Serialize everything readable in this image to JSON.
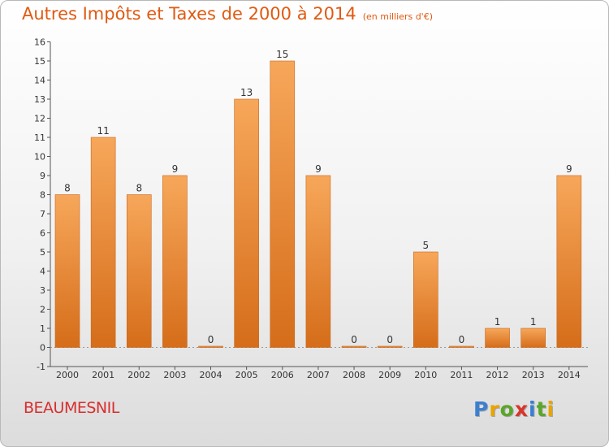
{
  "title": "Autres Impôts et Taxes de 2000 à 2014",
  "unit_note": "(en milliers d'€)",
  "commune": "BEAUMESNIL",
  "logo": {
    "letters": [
      "P",
      "r",
      "o",
      "x",
      "i",
      "t",
      "i"
    ],
    "colors": [
      "#3a7fd0",
      "#e8a400",
      "#5aa62a",
      "#d9352c",
      "#3a7fd0",
      "#5aa62a",
      "#e8a400"
    ]
  },
  "colors": {
    "bar_top": "#f7a75a",
    "bar_bottom": "#d56d1a",
    "title": "#e05a12",
    "commune": "#d92e2e"
  },
  "chart_data": {
    "type": "bar",
    "title": "Autres Impôts et Taxes de 2000 à 2014",
    "subtitle": "(en milliers d'€)",
    "categories": [
      "2000",
      "2001",
      "2002",
      "2003",
      "2004",
      "2005",
      "2006",
      "2007",
      "2008",
      "2009",
      "2010",
      "2011",
      "2012",
      "2013",
      "2014"
    ],
    "values": [
      8,
      11,
      8,
      9,
      0,
      13,
      15,
      9,
      0,
      0,
      5,
      0,
      1,
      1,
      9
    ],
    "ylim": [
      -1,
      16
    ],
    "yticks": [
      -1,
      0,
      1,
      2,
      3,
      4,
      5,
      6,
      7,
      8,
      9,
      10,
      11,
      12,
      13,
      14,
      15,
      16
    ],
    "grid": false,
    "legend": "none"
  }
}
